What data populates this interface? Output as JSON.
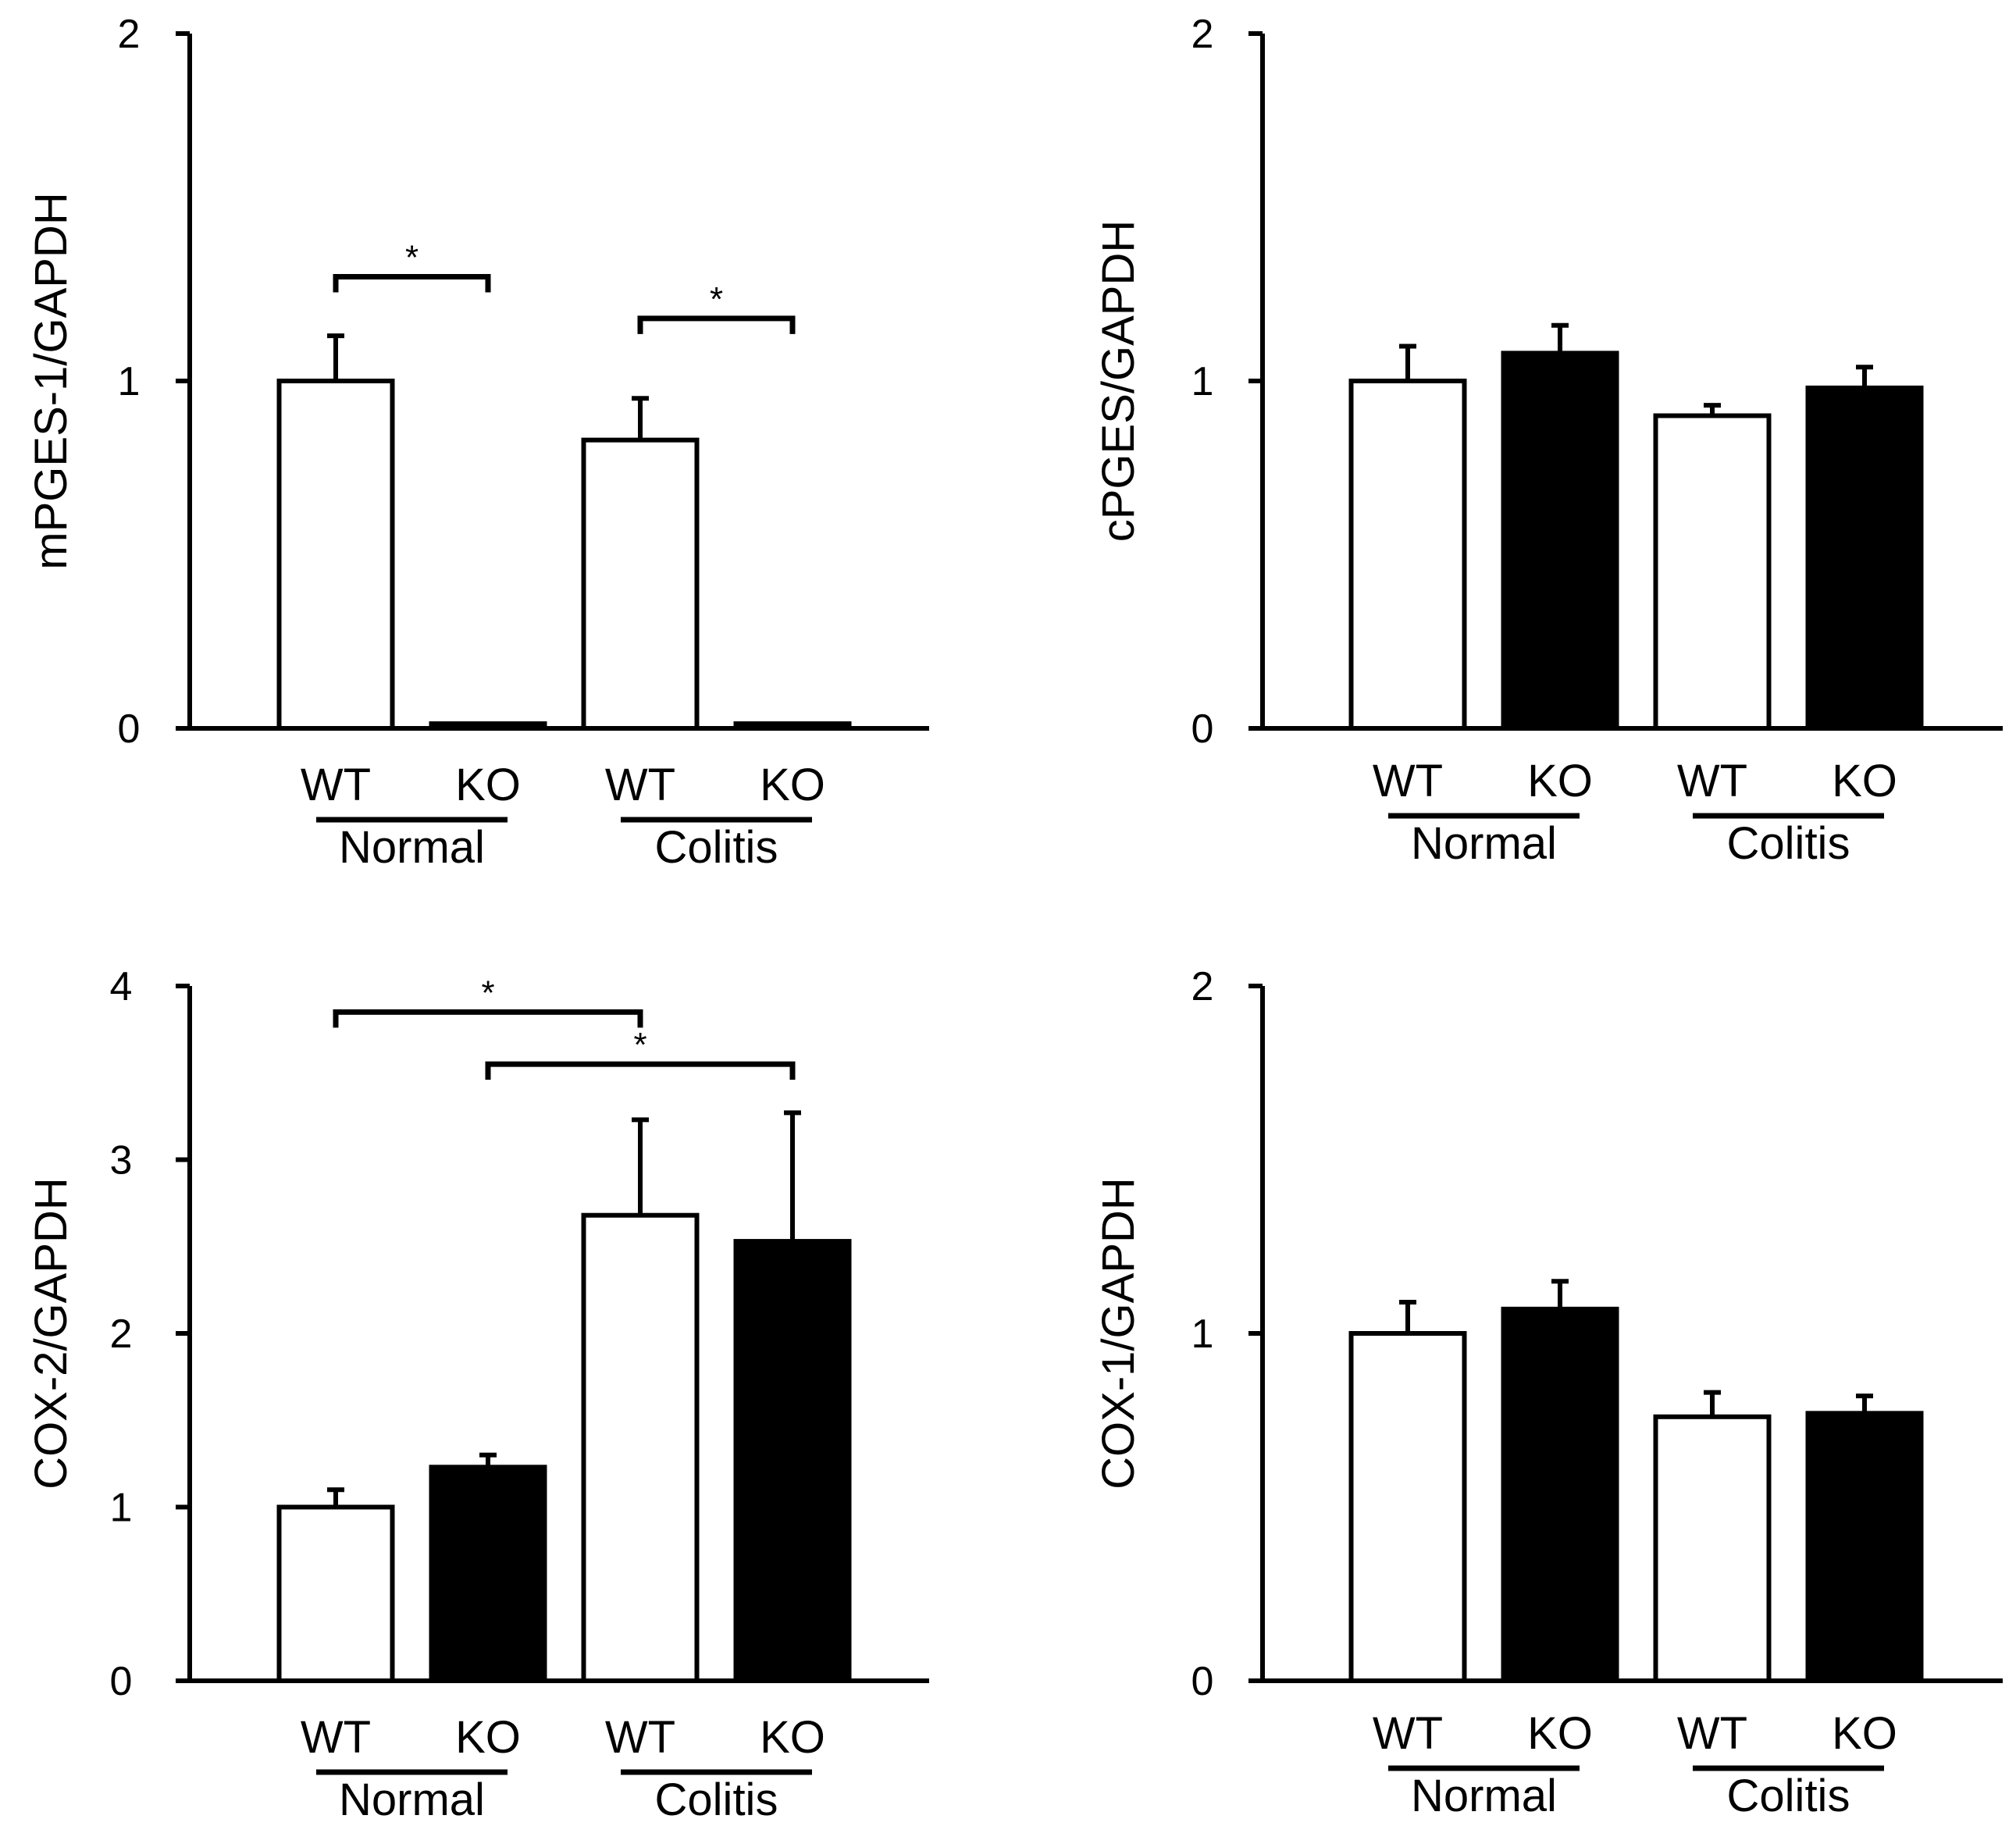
{
  "chart_data": [
    {
      "id": "mpges1",
      "type": "bar",
      "ylabel": "mPGES-1/GAPDH",
      "ylim": [
        0,
        2
      ],
      "yticks": [
        0,
        1,
        2
      ],
      "groups": [
        "Normal",
        "Colitis"
      ],
      "categories": [
        "WT",
        "KO",
        "WT",
        "KO"
      ],
      "values": [
        1.0,
        0.0,
        0.83,
        0.0
      ],
      "errors": [
        0.13,
        0.0,
        0.12,
        0.0
      ],
      "fills": [
        "white",
        "black",
        "white",
        "black"
      ],
      "significance": [
        {
          "from": 0,
          "to": 1,
          "label": "*",
          "y": 1.3
        },
        {
          "from": 2,
          "to": 3,
          "label": "*",
          "y": 1.18
        }
      ]
    },
    {
      "id": "cpges",
      "type": "bar",
      "ylabel": "cPGES/GAPDH",
      "ylim": [
        0,
        2
      ],
      "yticks": [
        0,
        1,
        2
      ],
      "groups": [
        "Normal",
        "Colitis"
      ],
      "categories": [
        "WT",
        "KO",
        "WT",
        "KO"
      ],
      "values": [
        1.0,
        1.08,
        0.9,
        0.98
      ],
      "errors": [
        0.1,
        0.08,
        0.03,
        0.06
      ],
      "fills": [
        "white",
        "black",
        "white",
        "black"
      ],
      "significance": []
    },
    {
      "id": "cox2",
      "type": "bar",
      "ylabel": "COX-2/GAPDH",
      "ylim": [
        0,
        4
      ],
      "yticks": [
        0,
        1,
        2,
        3,
        4
      ],
      "groups": [
        "Normal",
        "Colitis"
      ],
      "categories": [
        "WT",
        "KO",
        "WT",
        "KO"
      ],
      "values": [
        1.0,
        1.23,
        2.68,
        2.53
      ],
      "errors": [
        0.1,
        0.07,
        0.55,
        0.74
      ],
      "fills": [
        "white",
        "black",
        "white",
        "black"
      ],
      "significance": [
        {
          "from": 0,
          "to": 2,
          "label": "*",
          "y": 3.85
        },
        {
          "from": 1,
          "to": 3,
          "label": "*",
          "y": 3.55
        }
      ]
    },
    {
      "id": "cox1",
      "type": "bar",
      "ylabel": "COX-1/GAPDH",
      "ylim": [
        0,
        2
      ],
      "yticks": [
        0,
        1,
        2
      ],
      "groups": [
        "Normal",
        "Colitis"
      ],
      "categories": [
        "WT",
        "KO",
        "WT",
        "KO"
      ],
      "values": [
        1.0,
        1.07,
        0.76,
        0.77
      ],
      "errors": [
        0.09,
        0.08,
        0.07,
        0.05
      ],
      "fills": [
        "white",
        "black",
        "white",
        "black"
      ],
      "significance": []
    }
  ]
}
